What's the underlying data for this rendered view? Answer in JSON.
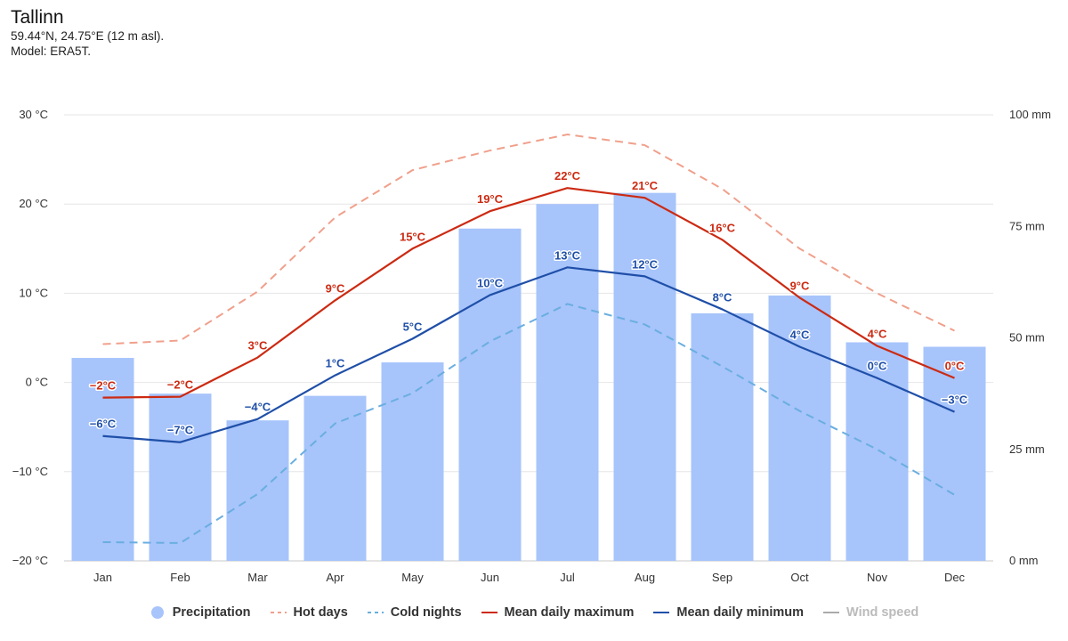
{
  "header": {
    "title": "Tallinn",
    "subtitle": "59.44°N, 24.75°E (12 m asl).",
    "model": "Model: ERA5T."
  },
  "colors": {
    "precipitation": "#a7c4fb",
    "hot_days": "#f0a08c",
    "cold_nights": "#6aaee0",
    "mean_max": "#cc2a12",
    "mean_min": "#1f4fa8",
    "wind": "#aaaaaa",
    "grid": "#e6e6e6"
  },
  "legend": [
    {
      "key": "precipitation",
      "label": "Precipitation",
      "symbol": "circle"
    },
    {
      "key": "hot_days",
      "label": "Hot days",
      "symbol": "dashed"
    },
    {
      "key": "cold_nights",
      "label": "Cold nights",
      "symbol": "dashed"
    },
    {
      "key": "mean_max",
      "label": "Mean daily maximum",
      "symbol": "line"
    },
    {
      "key": "mean_min",
      "label": "Mean daily minimum",
      "symbol": "line"
    },
    {
      "key": "wind",
      "label": "Wind speed",
      "symbol": "line",
      "disabled": true
    }
  ],
  "chart_data": {
    "type": "bar",
    "categories": [
      "Jan",
      "Feb",
      "Mar",
      "Apr",
      "May",
      "Jun",
      "Jul",
      "Aug",
      "Sep",
      "Oct",
      "Nov",
      "Dec"
    ],
    "y_left": {
      "min": -20,
      "max": 30,
      "ticks": [
        -20,
        -10,
        0,
        10,
        20,
        30
      ],
      "tick_labels": [
        "−20 °C",
        "−10 °C",
        "0 °C",
        "10 °C",
        "20 °C",
        "30 °C"
      ]
    },
    "y_right": {
      "min": 0,
      "max": 100,
      "ticks": [
        0,
        25,
        50,
        75,
        100
      ],
      "tick_labels": [
        "0 mm",
        "25 mm",
        "50 mm",
        "75 mm",
        "100 mm"
      ]
    },
    "grid": true,
    "legend_position": "bottom",
    "series": [
      {
        "key": "precipitation",
        "name": "Precipitation",
        "type": "bar",
        "axis": "right",
        "values": [
          45.5,
          37.5,
          31.5,
          37,
          44.5,
          74.5,
          80,
          82.5,
          55.5,
          59.5,
          49,
          48
        ]
      },
      {
        "key": "hot_days",
        "name": "Hot days",
        "type": "line",
        "dashed": true,
        "axis": "left",
        "values": [
          4.3,
          4.7,
          10.2,
          18.5,
          23.8,
          26,
          27.8,
          26.6,
          21.7,
          15,
          10,
          5.8
        ]
      },
      {
        "key": "cold_nights",
        "name": "Cold nights",
        "type": "line",
        "dashed": true,
        "axis": "left",
        "values": [
          -17.9,
          -18,
          -12.5,
          -4.6,
          -1.2,
          4.6,
          8.8,
          6.5,
          1.8,
          -3.2,
          -7.5,
          -12.6
        ]
      },
      {
        "key": "mean_max",
        "name": "Mean daily maximum",
        "type": "line",
        "axis": "left",
        "values": [
          -1.7,
          -1.6,
          2.8,
          9.2,
          15,
          19.2,
          21.8,
          20.7,
          16,
          9.5,
          4.1,
          0.5
        ],
        "labels": [
          "−2°C",
          "−2°C",
          "3°C",
          "9°C",
          "15°C",
          "19°C",
          "22°C",
          "21°C",
          "16°C",
          "9°C",
          "4°C",
          "0°C"
        ]
      },
      {
        "key": "mean_min",
        "name": "Mean daily minimum",
        "type": "line",
        "axis": "left",
        "values": [
          -6,
          -6.7,
          -4.1,
          0.8,
          4.9,
          9.8,
          12.9,
          11.9,
          8.2,
          4,
          0.5,
          -3.3
        ],
        "labels": [
          "−6°C",
          "−7°C",
          "−4°C",
          "1°C",
          "5°C",
          "10°C",
          "13°C",
          "12°C",
          "8°C",
          "4°C",
          "0°C",
          "−3°C"
        ]
      }
    ]
  }
}
